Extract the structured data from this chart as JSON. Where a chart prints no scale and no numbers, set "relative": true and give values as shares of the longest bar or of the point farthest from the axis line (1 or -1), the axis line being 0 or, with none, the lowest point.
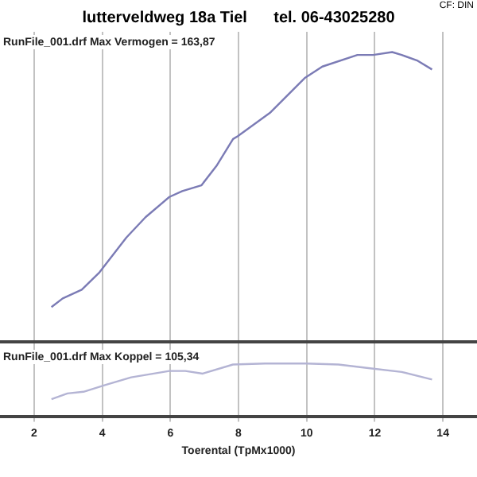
{
  "chart_data": [
    {
      "type": "line",
      "title": "lutterveldweg 18a Tiel      tel. 06-43025280",
      "relative": true,
      "grid": "x",
      "tick_labels": false,
      "xlim": [
        1,
        15
      ],
      "xticks": [
        2,
        4,
        6,
        8,
        10,
        12,
        14
      ],
      "annotations": [
        "CF: DIN",
        "RunFile_001.drf Max Vermogen = 163,87"
      ],
      "x": [
        2.51,
        2.84,
        3.4,
        3.92,
        4.71,
        5.27,
        5.97,
        6.35,
        6.91,
        7.37,
        7.84,
        7.98,
        8.92,
        9.94,
        10.46,
        11.49,
        11.95,
        12.51,
        12.79,
        13.26,
        13.68
      ],
      "series": [
        {
          "color": "#7b7bb5",
          "values": [
            0.12,
            0.15,
            0.18,
            0.24,
            0.36,
            0.43,
            0.5,
            0.52,
            0.54,
            0.61,
            0.7,
            0.71,
            0.79,
            0.91,
            0.95,
            0.99,
            0.99,
            1.0,
            0.99,
            0.97,
            0.94
          ]
        }
      ]
    },
    {
      "type": "line",
      "relative": true,
      "grid": "x",
      "tick_labels": "x",
      "xlim": [
        1,
        15
      ],
      "xticks": [
        2,
        4,
        6,
        8,
        10,
        12,
        14
      ],
      "xlabel": "Toerental (TpMx1000)",
      "annotations": [
        "RunFile_001.drf Max Koppel = 105,34"
      ],
      "x": [
        2.51,
        2.98,
        3.45,
        4.1,
        4.85,
        5.97,
        6.44,
        6.95,
        7.84,
        8.78,
        9.99,
        10.93,
        11.86,
        12.79,
        13.68
      ],
      "series": [
        {
          "color": "#b4b4d4",
          "values": [
            0.33,
            0.44,
            0.47,
            0.6,
            0.74,
            0.86,
            0.86,
            0.81,
            0.98,
            1.0,
            1.0,
            0.98,
            0.91,
            0.84,
            0.7
          ]
        }
      ]
    }
  ]
}
